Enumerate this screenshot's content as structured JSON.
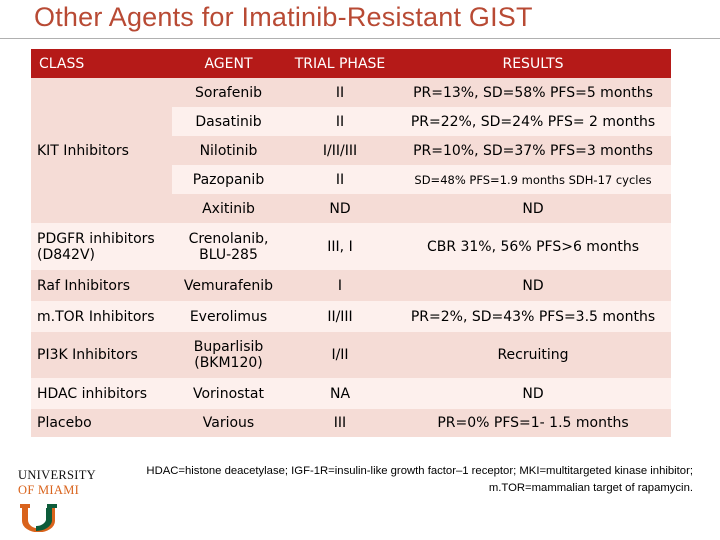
{
  "title": "Other Agents for Imatinib-Resistant GIST",
  "colors": {
    "title": "#b84a34",
    "header_bg": "#b51a18",
    "row_dark": "#f5dcd6",
    "row_light": "#fdf0ed",
    "logo_orange": "#d9631c",
    "logo_green": "#0d5c3a"
  },
  "table": {
    "headers": [
      "CLASS",
      "AGENT",
      "TRIAL PHASE",
      "RESULTS"
    ],
    "kit_class": "KIT Inhibitors",
    "kit_rows": [
      {
        "agent": "Sorafenib",
        "phase": "II",
        "results": "PR=13%, SD=58%  PFS=5 months"
      },
      {
        "agent": "Dasatinib",
        "phase": "II",
        "results": "PR=22%, SD=24%  PFS= 2 months"
      },
      {
        "agent": "Nilotinib",
        "phase": "I/II/III",
        "results": "PR=10%, SD=37%  PFS=3 months"
      },
      {
        "agent": "Pazopanib",
        "phase": "II",
        "results": "SD=48% PFS=1.9 months SDH-17 cycles"
      },
      {
        "agent": "Axitinib",
        "phase": "ND",
        "results": "ND"
      }
    ],
    "other_rows": [
      {
        "class": "PDGFR inhibitors (D842V)",
        "agent": "Crenolanib, BLU-285",
        "phase": "III, I",
        "results": "CBR 31%, 56% PFS>6 months"
      },
      {
        "class": "Raf Inhibitors",
        "agent": "Vemurafenib",
        "phase": "I",
        "results": "ND"
      },
      {
        "class": "m.TOR Inhibitors",
        "agent": "Everolimus",
        "phase": "II/III",
        "results": "PR=2%, SD=43%  PFS=3.5 months"
      },
      {
        "class": "PI3K Inhibitors",
        "agent": "Buparlisib (BKM120)",
        "phase": "I/II",
        "results": "Recruiting"
      },
      {
        "class": "HDAC inhibitors",
        "agent": "Vorinostat",
        "phase": "NA",
        "results": "ND"
      },
      {
        "class": "Placebo",
        "agent": "Various",
        "phase": "III",
        "results": "PR=0%  PFS=1- 1.5 months"
      }
    ]
  },
  "footnote": "HDAC=histone deacetylase; IGF-1R=insulin-like growth factor–1 receptor; MKI=multitargeted kinase inhibitor; m.TOR=mammalian target of rapamycin.",
  "logo": {
    "line1": "UNIVERSITY",
    "line2": "OF MIAMI",
    "icon": "u-logo-icon"
  }
}
